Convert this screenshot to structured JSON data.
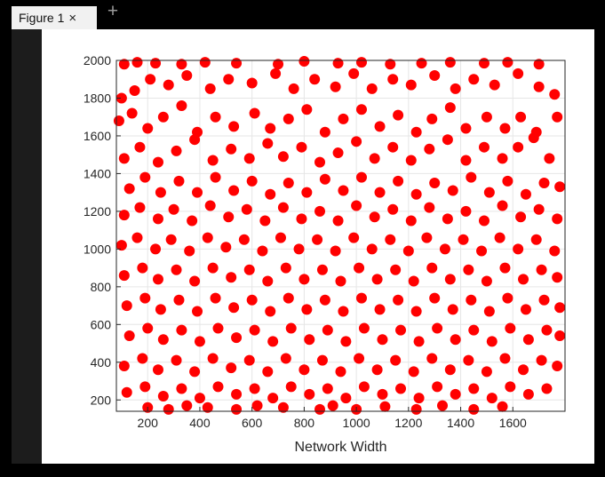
{
  "window": {
    "tab_label": "Figure 1",
    "tab_close_glyph": "×",
    "tab_add_glyph": "+"
  },
  "chart_data": {
    "type": "scatter",
    "xlabel": "Network Width",
    "ylabel": "",
    "xlim": [
      80,
      1800
    ],
    "ylim": [
      140,
      2000
    ],
    "xticks": [
      200,
      400,
      600,
      800,
      1000,
      1200,
      1400,
      1600
    ],
    "yticks": [
      200,
      400,
      600,
      800,
      1000,
      1200,
      1400,
      1600,
      1800,
      2000
    ],
    "grid": true,
    "marker_color": "#ff0000",
    "series": [
      {
        "values_note_free": true,
        "points": [
          [
            110,
            1980
          ],
          [
            160,
            1990
          ],
          [
            230,
            1985
          ],
          [
            330,
            1980
          ],
          [
            420,
            1990
          ],
          [
            540,
            1985
          ],
          [
            700,
            1980
          ],
          [
            800,
            1995
          ],
          [
            930,
            1985
          ],
          [
            1020,
            1990
          ],
          [
            1130,
            1980
          ],
          [
            1250,
            1985
          ],
          [
            1360,
            1990
          ],
          [
            1490,
            1985
          ],
          [
            1580,
            1990
          ],
          [
            1700,
            1980
          ],
          [
            100,
            1800
          ],
          [
            150,
            1840
          ],
          [
            210,
            1900
          ],
          [
            280,
            1870
          ],
          [
            350,
            1920
          ],
          [
            440,
            1850
          ],
          [
            510,
            1900
          ],
          [
            600,
            1880
          ],
          [
            690,
            1930
          ],
          [
            760,
            1850
          ],
          [
            840,
            1900
          ],
          [
            920,
            1860
          ],
          [
            990,
            1930
          ],
          [
            1060,
            1850
          ],
          [
            1140,
            1900
          ],
          [
            1210,
            1870
          ],
          [
            1300,
            1920
          ],
          [
            1380,
            1850
          ],
          [
            1450,
            1900
          ],
          [
            1530,
            1870
          ],
          [
            1620,
            1930
          ],
          [
            1700,
            1860
          ],
          [
            1760,
            1820
          ],
          [
            90,
            1680
          ],
          [
            140,
            1720
          ],
          [
            200,
            1640
          ],
          [
            260,
            1700
          ],
          [
            330,
            1760
          ],
          [
            390,
            1620
          ],
          [
            460,
            1700
          ],
          [
            530,
            1650
          ],
          [
            610,
            1720
          ],
          [
            670,
            1640
          ],
          [
            740,
            1690
          ],
          [
            810,
            1740
          ],
          [
            880,
            1620
          ],
          [
            950,
            1690
          ],
          [
            1020,
            1740
          ],
          [
            1090,
            1650
          ],
          [
            1160,
            1710
          ],
          [
            1230,
            1620
          ],
          [
            1290,
            1690
          ],
          [
            1360,
            1750
          ],
          [
            1420,
            1640
          ],
          [
            1500,
            1700
          ],
          [
            1570,
            1640
          ],
          [
            1630,
            1700
          ],
          [
            1690,
            1620
          ],
          [
            1770,
            1700
          ],
          [
            110,
            1480
          ],
          [
            170,
            1540
          ],
          [
            240,
            1460
          ],
          [
            310,
            1520
          ],
          [
            380,
            1580
          ],
          [
            450,
            1470
          ],
          [
            520,
            1530
          ],
          [
            590,
            1480
          ],
          [
            660,
            1560
          ],
          [
            720,
            1490
          ],
          [
            790,
            1540
          ],
          [
            860,
            1460
          ],
          [
            930,
            1510
          ],
          [
            1000,
            1570
          ],
          [
            1070,
            1480
          ],
          [
            1140,
            1540
          ],
          [
            1210,
            1470
          ],
          [
            1280,
            1530
          ],
          [
            1350,
            1580
          ],
          [
            1420,
            1470
          ],
          [
            1490,
            1540
          ],
          [
            1560,
            1480
          ],
          [
            1620,
            1540
          ],
          [
            1680,
            1590
          ],
          [
            1740,
            1480
          ],
          [
            130,
            1320
          ],
          [
            190,
            1380
          ],
          [
            250,
            1300
          ],
          [
            320,
            1360
          ],
          [
            390,
            1300
          ],
          [
            460,
            1380
          ],
          [
            530,
            1310
          ],
          [
            600,
            1360
          ],
          [
            670,
            1290
          ],
          [
            740,
            1350
          ],
          [
            810,
            1300
          ],
          [
            880,
            1370
          ],
          [
            950,
            1310
          ],
          [
            1020,
            1380
          ],
          [
            1090,
            1300
          ],
          [
            1160,
            1360
          ],
          [
            1230,
            1290
          ],
          [
            1300,
            1350
          ],
          [
            1370,
            1310
          ],
          [
            1440,
            1380
          ],
          [
            1510,
            1300
          ],
          [
            1580,
            1360
          ],
          [
            1650,
            1290
          ],
          [
            1720,
            1350
          ],
          [
            1780,
            1330
          ],
          [
            110,
            1180
          ],
          [
            170,
            1220
          ],
          [
            240,
            1160
          ],
          [
            300,
            1210
          ],
          [
            370,
            1150
          ],
          [
            440,
            1230
          ],
          [
            510,
            1170
          ],
          [
            580,
            1210
          ],
          [
            650,
            1150
          ],
          [
            720,
            1220
          ],
          [
            790,
            1160
          ],
          [
            860,
            1200
          ],
          [
            930,
            1150
          ],
          [
            1000,
            1230
          ],
          [
            1070,
            1170
          ],
          [
            1140,
            1210
          ],
          [
            1210,
            1150
          ],
          [
            1280,
            1220
          ],
          [
            1350,
            1160
          ],
          [
            1420,
            1200
          ],
          [
            1490,
            1150
          ],
          [
            1560,
            1230
          ],
          [
            1630,
            1170
          ],
          [
            1700,
            1210
          ],
          [
            1770,
            1160
          ],
          [
            100,
            1020
          ],
          [
            160,
            1060
          ],
          [
            230,
            1000
          ],
          [
            290,
            1050
          ],
          [
            360,
            990
          ],
          [
            430,
            1060
          ],
          [
            500,
            1010
          ],
          [
            570,
            1050
          ],
          [
            640,
            990
          ],
          [
            710,
            1060
          ],
          [
            780,
            1000
          ],
          [
            850,
            1050
          ],
          [
            920,
            990
          ],
          [
            990,
            1060
          ],
          [
            1060,
            1000
          ],
          [
            1130,
            1050
          ],
          [
            1200,
            990
          ],
          [
            1270,
            1060
          ],
          [
            1340,
            1000
          ],
          [
            1410,
            1050
          ],
          [
            1480,
            990
          ],
          [
            1550,
            1060
          ],
          [
            1620,
            1000
          ],
          [
            1690,
            1050
          ],
          [
            1760,
            990
          ],
          [
            110,
            860
          ],
          [
            180,
            900
          ],
          [
            240,
            840
          ],
          [
            310,
            890
          ],
          [
            380,
            830
          ],
          [
            450,
            900
          ],
          [
            520,
            850
          ],
          [
            590,
            890
          ],
          [
            660,
            830
          ],
          [
            730,
            900
          ],
          [
            800,
            840
          ],
          [
            870,
            890
          ],
          [
            940,
            830
          ],
          [
            1010,
            900
          ],
          [
            1080,
            840
          ],
          [
            1150,
            890
          ],
          [
            1220,
            830
          ],
          [
            1290,
            900
          ],
          [
            1360,
            840
          ],
          [
            1430,
            890
          ],
          [
            1500,
            830
          ],
          [
            1570,
            900
          ],
          [
            1640,
            840
          ],
          [
            1710,
            890
          ],
          [
            1770,
            850
          ],
          [
            120,
            700
          ],
          [
            190,
            740
          ],
          [
            250,
            680
          ],
          [
            320,
            730
          ],
          [
            390,
            670
          ],
          [
            460,
            740
          ],
          [
            530,
            690
          ],
          [
            600,
            730
          ],
          [
            670,
            670
          ],
          [
            740,
            740
          ],
          [
            810,
            680
          ],
          [
            880,
            730
          ],
          [
            950,
            670
          ],
          [
            1020,
            740
          ],
          [
            1090,
            680
          ],
          [
            1160,
            730
          ],
          [
            1230,
            670
          ],
          [
            1300,
            740
          ],
          [
            1370,
            680
          ],
          [
            1440,
            730
          ],
          [
            1510,
            670
          ],
          [
            1580,
            740
          ],
          [
            1650,
            680
          ],
          [
            1720,
            730
          ],
          [
            1780,
            690
          ],
          [
            130,
            540
          ],
          [
            200,
            580
          ],
          [
            260,
            520
          ],
          [
            330,
            570
          ],
          [
            400,
            510
          ],
          [
            470,
            580
          ],
          [
            540,
            530
          ],
          [
            610,
            570
          ],
          [
            680,
            510
          ],
          [
            750,
            580
          ],
          [
            820,
            520
          ],
          [
            890,
            570
          ],
          [
            960,
            510
          ],
          [
            1030,
            580
          ],
          [
            1100,
            520
          ],
          [
            1170,
            570
          ],
          [
            1240,
            510
          ],
          [
            1310,
            580
          ],
          [
            1380,
            520
          ],
          [
            1450,
            570
          ],
          [
            1520,
            510
          ],
          [
            1590,
            580
          ],
          [
            1660,
            520
          ],
          [
            1730,
            570
          ],
          [
            1780,
            540
          ],
          [
            110,
            380
          ],
          [
            180,
            420
          ],
          [
            240,
            360
          ],
          [
            310,
            410
          ],
          [
            380,
            350
          ],
          [
            450,
            420
          ],
          [
            520,
            370
          ],
          [
            590,
            410
          ],
          [
            660,
            350
          ],
          [
            730,
            420
          ],
          [
            800,
            360
          ],
          [
            870,
            410
          ],
          [
            940,
            350
          ],
          [
            1010,
            420
          ],
          [
            1080,
            360
          ],
          [
            1150,
            410
          ],
          [
            1220,
            350
          ],
          [
            1290,
            420
          ],
          [
            1360,
            360
          ],
          [
            1430,
            410
          ],
          [
            1500,
            350
          ],
          [
            1570,
            420
          ],
          [
            1640,
            360
          ],
          [
            1710,
            410
          ],
          [
            1770,
            380
          ],
          [
            120,
            240
          ],
          [
            190,
            270
          ],
          [
            260,
            220
          ],
          [
            330,
            260
          ],
          [
            400,
            210
          ],
          [
            470,
            270
          ],
          [
            540,
            230
          ],
          [
            610,
            260
          ],
          [
            680,
            210
          ],
          [
            750,
            270
          ],
          [
            820,
            230
          ],
          [
            890,
            260
          ],
          [
            960,
            210
          ],
          [
            1030,
            270
          ],
          [
            1100,
            230
          ],
          [
            1170,
            260
          ],
          [
            1240,
            210
          ],
          [
            1310,
            270
          ],
          [
            1380,
            230
          ],
          [
            1450,
            260
          ],
          [
            1520,
            210
          ],
          [
            1590,
            270
          ],
          [
            1660,
            230
          ],
          [
            1730,
            260
          ],
          [
            200,
            160
          ],
          [
            280,
            150
          ],
          [
            350,
            170
          ],
          [
            430,
            160
          ],
          [
            540,
            150
          ],
          [
            620,
            170
          ],
          [
            720,
            160
          ],
          [
            860,
            150
          ],
          [
            910,
            170
          ],
          [
            1000,
            150
          ],
          [
            1110,
            165
          ],
          [
            1230,
            150
          ],
          [
            1330,
            170
          ],
          [
            1450,
            150
          ],
          [
            1560,
            165
          ]
        ]
      }
    ]
  }
}
